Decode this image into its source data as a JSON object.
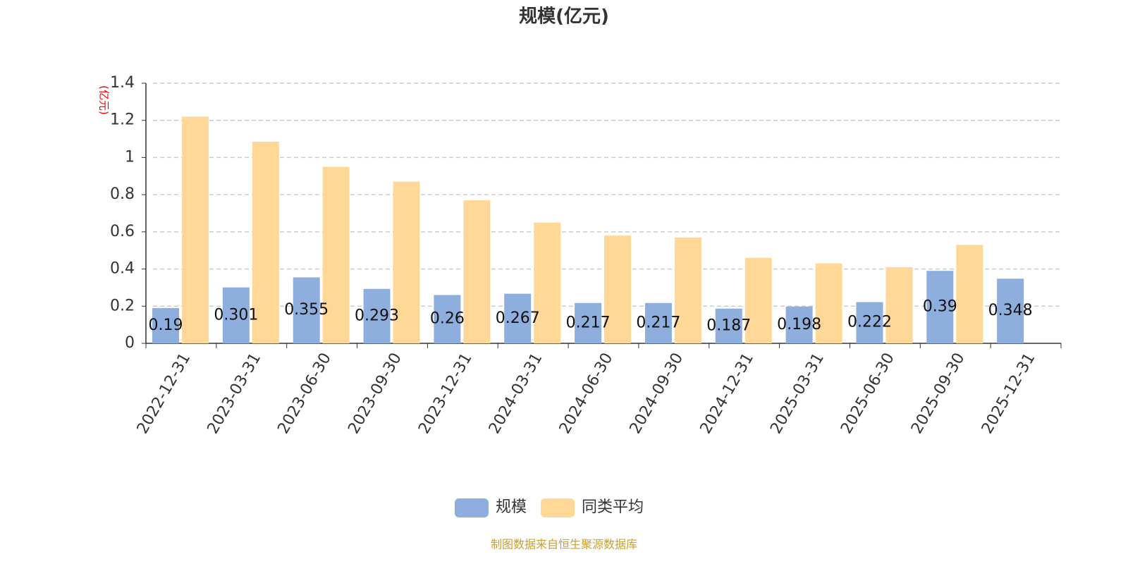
{
  "chart_data": {
    "type": "bar",
    "title": "规模(亿元)",
    "y_label": "(亿元)",
    "categories": [
      "2022-12-31",
      "2023-03-31",
      "2023-06-30",
      "2023-09-30",
      "2023-12-31",
      "2024-03-31",
      "2024-06-30",
      "2024-09-30",
      "2024-12-31",
      "2025-03-31",
      "2025-06-30",
      "2025-09-30",
      "2025-12-31"
    ],
    "series": [
      {
        "name": "规模",
        "color": "#8eaedd",
        "values": [
          0.19,
          0.301,
          0.355,
          0.293,
          0.26,
          0.267,
          0.217,
          0.217,
          0.187,
          0.198,
          0.222,
          0.39,
          0.348
        ]
      },
      {
        "name": "同类平均",
        "color": "#ffd898",
        "values": [
          1.22,
          1.085,
          0.95,
          0.87,
          0.77,
          0.65,
          0.58,
          0.57,
          0.46,
          0.43,
          0.41,
          0.53,
          null
        ]
      }
    ],
    "ylim": [
      0,
      1.4
    ],
    "yticks": [
      0,
      0.2,
      0.4,
      0.6,
      0.8,
      1,
      1.2,
      1.4
    ],
    "grid": true,
    "source": "制图数据来自恒生聚源数据库"
  }
}
